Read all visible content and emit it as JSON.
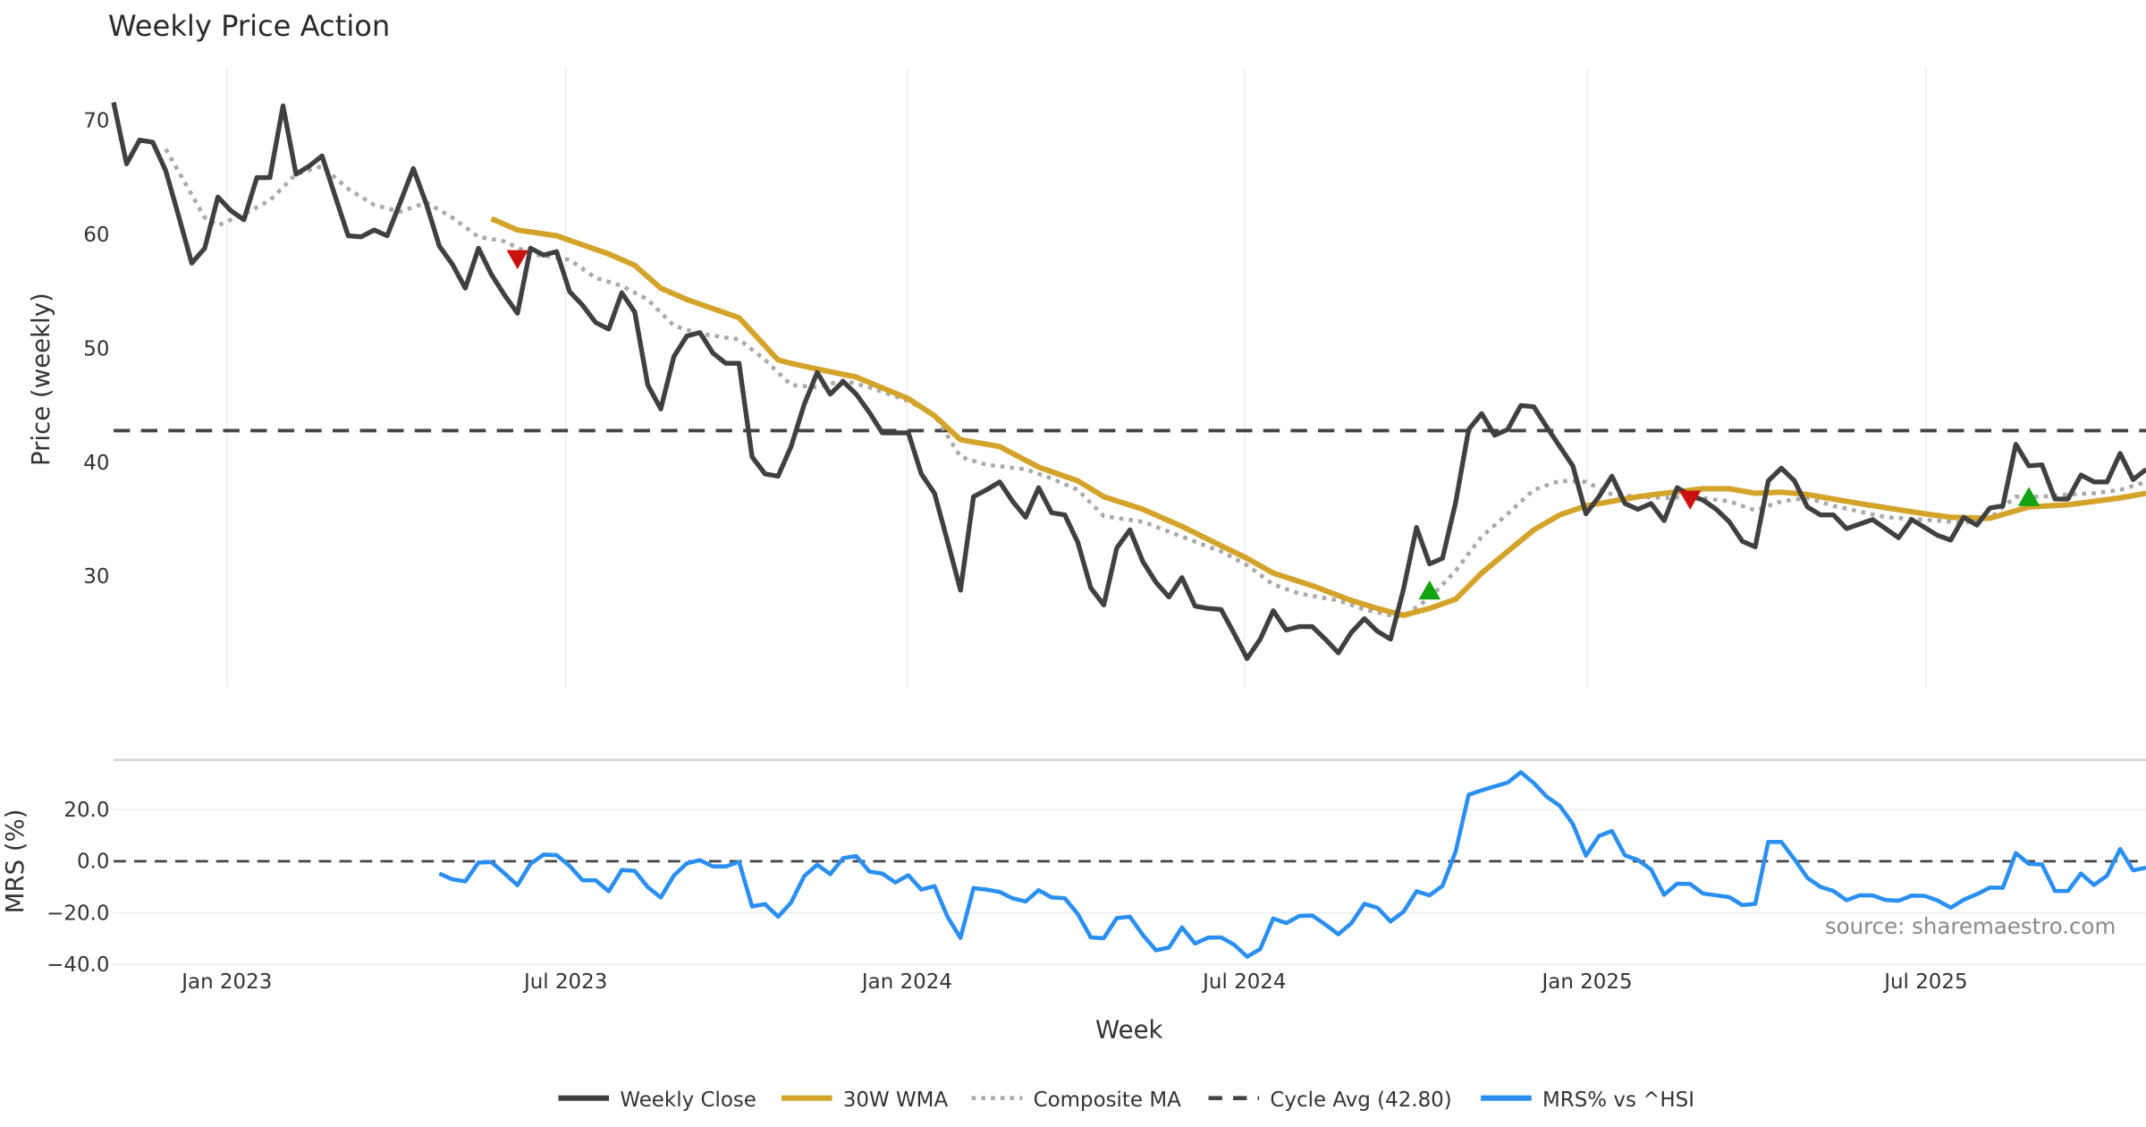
{
  "chart_data": [
    {
      "type": "line",
      "title": "Weekly Price Action",
      "xlabel": "Week",
      "ylabel": "Price (weekly)",
      "x_unit": "week index (weekly points from early Nov 2022)",
      "xlim": [
        0,
        156
      ],
      "ylim": [
        20,
        74
      ],
      "grid": "vertical",
      "yticks": [
        {
          "value": 70,
          "label": "70"
        },
        {
          "value": 60,
          "label": "60"
        },
        {
          "value": 50,
          "label": "50"
        },
        {
          "value": 40,
          "label": "40"
        },
        {
          "value": 30,
          "label": "30"
        }
      ],
      "xticks": [
        {
          "week_index": 8.7,
          "label": "Jan 2023"
        },
        {
          "week_index": 34.7,
          "label": "Jul 2023"
        },
        {
          "week_index": 60.9,
          "label": "Jan 2024"
        },
        {
          "week_index": 86.8,
          "label": "Jul 2024"
        },
        {
          "week_index": 113.1,
          "label": "Jan 2025"
        },
        {
          "week_index": 139.1,
          "label": "Jul 2025"
        }
      ],
      "series": [
        {
          "name": "Weekly Close",
          "color": "#404040",
          "style": "solid",
          "start_index": 0,
          "values": [
            71.6,
            66.2,
            68.3,
            68.1,
            65.6,
            61.6,
            57.5,
            58.8,
            63.3,
            62.1,
            61.3,
            65.0,
            65.0,
            71.3,
            65.3,
            66.0,
            66.9,
            63.4,
            59.9,
            59.8,
            60.4,
            59.9,
            62.8,
            65.8,
            62.7,
            59.0,
            57.4,
            55.3,
            58.8,
            56.5,
            54.7,
            53.1,
            58.8,
            58.2,
            58.5,
            55.0,
            53.8,
            52.3,
            51.7,
            54.9,
            53.2,
            46.8,
            44.7,
            49.3,
            51.1,
            51.4,
            49.6,
            48.7,
            48.7,
            40.5,
            39.0,
            38.8,
            41.4,
            45.1,
            47.9,
            46.0,
            47.1,
            46.0,
            44.4,
            42.6,
            42.6,
            42.6,
            39.0,
            37.3,
            33.1,
            28.8,
            37.0,
            37.6,
            38.3,
            36.6,
            35.2,
            37.8,
            35.6,
            35.4,
            33.0,
            29.0,
            27.5,
            32.5,
            34.1,
            31.3,
            29.5,
            28.2,
            29.9,
            27.4,
            27.2,
            27.1,
            25.0,
            22.8,
            24.5,
            27.0,
            25.3,
            25.6,
            25.6,
            24.5,
            23.3,
            25.1,
            26.3,
            25.2,
            24.5,
            28.9,
            34.3,
            31.1,
            31.6,
            36.5,
            42.9,
            44.3,
            42.4,
            42.9,
            45.0,
            44.9,
            43.1,
            41.4,
            39.7,
            35.5,
            37.0,
            38.8,
            36.4,
            35.9,
            36.4,
            34.9,
            37.8,
            37.1,
            36.7,
            35.9,
            34.8,
            33.1,
            32.6,
            38.4,
            39.5,
            38.4,
            36.1,
            35.4,
            35.4,
            34.2,
            34.6,
            35.0,
            34.2,
            33.4,
            35.0,
            34.3,
            33.6,
            33.2,
            35.2,
            34.5,
            36.0,
            36.2,
            41.6,
            39.7,
            39.8,
            36.8,
            36.8,
            38.9,
            38.3,
            38.3,
            40.8,
            38.5,
            39.4
          ]
        },
        {
          "name": "30W WMA",
          "color": "#d4a32a",
          "style": "solid",
          "points": [
            [
              29,
              61.4
            ],
            [
              31,
              60.4
            ],
            [
              34,
              59.9
            ],
            [
              38,
              58.3
            ],
            [
              40,
              57.3
            ],
            [
              42,
              55.3
            ],
            [
              44,
              54.3
            ],
            [
              48,
              52.7
            ],
            [
              51,
              49.0
            ],
            [
              52,
              48.7
            ],
            [
              54,
              48.2
            ],
            [
              57,
              47.5
            ],
            [
              61,
              45.6
            ],
            [
              63,
              44.1
            ],
            [
              65,
              42.0
            ],
            [
              68,
              41.4
            ],
            [
              71,
              39.6
            ],
            [
              74,
              38.4
            ],
            [
              76,
              37.0
            ],
            [
              79,
              35.9
            ],
            [
              82,
              34.4
            ],
            [
              85,
              32.7
            ],
            [
              87,
              31.6
            ],
            [
              89,
              30.3
            ],
            [
              92,
              29.2
            ],
            [
              95,
              27.9
            ],
            [
              97,
              27.2
            ],
            [
              99,
              26.6
            ],
            [
              101,
              27.2
            ],
            [
              103,
              28.0
            ],
            [
              105,
              30.3
            ],
            [
              107,
              32.2
            ],
            [
              109,
              34.1
            ],
            [
              111,
              35.4
            ],
            [
              113,
              36.2
            ],
            [
              115,
              36.6
            ],
            [
              117,
              37.0
            ],
            [
              119,
              37.3
            ],
            [
              122,
              37.7
            ],
            [
              124,
              37.7
            ],
            [
              126,
              37.3
            ],
            [
              128,
              37.4
            ],
            [
              130,
              37.2
            ],
            [
              134,
              36.4
            ],
            [
              139,
              35.5
            ],
            [
              141,
              35.2
            ],
            [
              144,
              35.1
            ],
            [
              147,
              36.1
            ],
            [
              150,
              36.3
            ],
            [
              154,
              36.9
            ],
            [
              156,
              37.3
            ]
          ]
        },
        {
          "name": "Composite MA",
          "color": "#aaaaaa",
          "style": "dotted",
          "points": [
            [
              4,
              67.5
            ],
            [
              7,
              61.5
            ],
            [
              8,
              60.8
            ],
            [
              10,
              61.8
            ],
            [
              12,
              63.0
            ],
            [
              14,
              65.3
            ],
            [
              16,
              66.0
            ],
            [
              18,
              64.0
            ],
            [
              20,
              62.6
            ],
            [
              22,
              62.0
            ],
            [
              24,
              62.8
            ],
            [
              26,
              61.5
            ],
            [
              28,
              59.8
            ],
            [
              30,
              59.4
            ],
            [
              32,
              58.3
            ],
            [
              35,
              57.8
            ],
            [
              37,
              56.2
            ],
            [
              39,
              55.5
            ],
            [
              41,
              54.3
            ],
            [
              43,
              52.0
            ],
            [
              45,
              51.3
            ],
            [
              48,
              50.8
            ],
            [
              50,
              49.0
            ],
            [
              52,
              46.8
            ],
            [
              54,
              46.6
            ],
            [
              56,
              47.2
            ],
            [
              58,
              46.6
            ],
            [
              61,
              45.4
            ],
            [
              63,
              44.2
            ],
            [
              65,
              40.5
            ],
            [
              67,
              39.8
            ],
            [
              70,
              39.4
            ],
            [
              72,
              38.6
            ],
            [
              74,
              37.6
            ],
            [
              76,
              35.3
            ],
            [
              79,
              34.8
            ],
            [
              82,
              33.5
            ],
            [
              85,
              32.2
            ],
            [
              87,
              31.0
            ],
            [
              89,
              29.3
            ],
            [
              91,
              28.5
            ],
            [
              94,
              27.9
            ],
            [
              96,
              27.1
            ],
            [
              98,
              26.6
            ],
            [
              99,
              26.5
            ],
            [
              101,
              28.1
            ],
            [
              103,
              30.5
            ],
            [
              105,
              33.5
            ],
            [
              107,
              35.5
            ],
            [
              109,
              37.6
            ],
            [
              111,
              38.4
            ],
            [
              113,
              38.3
            ],
            [
              115,
              37.2
            ],
            [
              117,
              37.0
            ],
            [
              119,
              36.9
            ],
            [
              121,
              37.0
            ],
            [
              124,
              36.6
            ],
            [
              126,
              35.8
            ],
            [
              128,
              36.6
            ],
            [
              130,
              36.9
            ],
            [
              132,
              36.2
            ],
            [
              136,
              35.2
            ],
            [
              140,
              34.9
            ],
            [
              142,
              34.7
            ],
            [
              144,
              35.1
            ],
            [
              146,
              37.0
            ],
            [
              148,
              37.0
            ],
            [
              150,
              37.2
            ],
            [
              152,
              37.3
            ],
            [
              154,
              37.6
            ],
            [
              156,
              38.3
            ]
          ]
        },
        {
          "name": "Cycle Avg (42.80)",
          "color": "#444444",
          "style": "dashed",
          "value": 42.8
        }
      ],
      "markers": [
        {
          "type": "sell",
          "week_index": 31,
          "value": 57.8,
          "color": "#cc1111"
        },
        {
          "type": "buy",
          "week_index": 101,
          "value": 28.7,
          "color": "#11a311"
        },
        {
          "type": "sell",
          "week_index": 121,
          "value": 36.7,
          "color": "#cc1111"
        },
        {
          "type": "buy",
          "week_index": 147,
          "value": 36.9,
          "color": "#11a311"
        }
      ]
    },
    {
      "type": "line",
      "ylabel": "MRS (%)",
      "xlabel": "Week",
      "ylim": [
        -42,
        40
      ],
      "grid": "horizontal",
      "yticks": [
        {
          "value": 20,
          "label": "20.0"
        },
        {
          "value": 0,
          "label": "0.0"
        },
        {
          "value": -20,
          "label": "−20.0"
        },
        {
          "value": -40,
          "label": "−40.0"
        }
      ],
      "zero_line": {
        "value": 0,
        "style": "dashed",
        "color": "#444444"
      },
      "series": [
        {
          "name": "MRS% vs ^HSI",
          "color": "#2a8ff0",
          "style": "solid",
          "start_index": 25,
          "values": [
            -4.8,
            -7,
            -7.8,
            -0.5,
            -0.3,
            -4.7,
            -9.3,
            -1.0,
            2.6,
            2.4,
            -1.8,
            -7.4,
            -7.4,
            -11.6,
            -3.4,
            -3.7,
            -10,
            -14,
            -5.5,
            -0.8,
            0.4,
            -2,
            -2,
            -0.2,
            -17.5,
            -16.6,
            -21.5,
            -16,
            -5.8,
            -1.3,
            -5,
            1.2,
            2,
            -4,
            -4.8,
            -8.2,
            -5.4,
            -11,
            -9.6,
            -21.5,
            -29.7,
            -10.4,
            -11,
            -11.9,
            -14.4,
            -15.6,
            -11.2,
            -14,
            -14.3,
            -20.4,
            -29.5,
            -29.8,
            -22,
            -21.5,
            -28.6,
            -34.5,
            -33.4,
            -25.6,
            -31.9,
            -29.6,
            -29.5,
            -32.3,
            -37,
            -34,
            -22.2,
            -24,
            -21.2,
            -21,
            -24.5,
            -28.3,
            -24,
            -16.5,
            -18,
            -23.3,
            -19.6,
            -11.6,
            -13.2,
            -9.5,
            3.8,
            25.8,
            27.5,
            29,
            30.5,
            34.5,
            30.3,
            25,
            21.5,
            14.5,
            2.2,
            9.8,
            11.7,
            2.3,
            0.5,
            -3.2,
            -13,
            -8.7,
            -8.8,
            -12.5,
            -13.2,
            -13.9,
            -17,
            -16.5,
            7.5,
            7.5,
            0.8,
            -6.4,
            -9.9,
            -11.5,
            -15.1,
            -13.2,
            -13.2,
            -15,
            -15.3,
            -13.3,
            -13.4,
            -15.2,
            -18,
            -14.9,
            -12.8,
            -10.2,
            -10.3,
            3.2,
            -1,
            -1.2,
            -11.5,
            -11.5,
            -4.8,
            -9.2,
            -5.5,
            4.8,
            -3.5,
            -2.5
          ]
        }
      ],
      "annotation": "source: sharemaestro.com"
    }
  ],
  "legend": {
    "placement": "bottom-center",
    "items": [
      {
        "label": "Weekly Close",
        "color": "#404040",
        "style": "solid"
      },
      {
        "label": "30W WMA",
        "color": "#d4a32a",
        "style": "solid"
      },
      {
        "label": "Composite MA",
        "color": "#aaaaaa",
        "style": "dotted"
      },
      {
        "label": "Cycle Avg (42.80)",
        "color": "#444444",
        "style": "dashed"
      },
      {
        "label": "MRS% vs ^HSI",
        "color": "#2a8ff0",
        "style": "solid"
      }
    ]
  }
}
